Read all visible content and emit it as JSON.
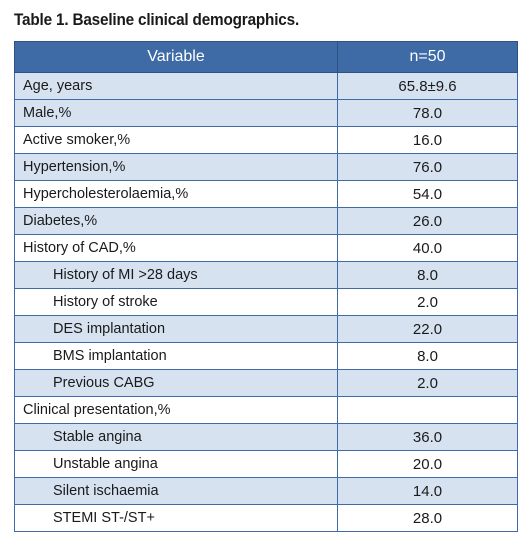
{
  "caption": "Table 1. Baseline clinical demographics.",
  "header": {
    "variable": "Variable",
    "value": "n=50"
  },
  "rows": [
    {
      "label": "Age, years",
      "value": "65.8±9.6"
    },
    {
      "label": "Male,%",
      "value": "78.0"
    },
    {
      "label": "Active smoker,%",
      "value": "16.0"
    },
    {
      "label": "Hypertension,%",
      "value": "76.0"
    },
    {
      "label": "Hypercholesterolaemia,%",
      "value": "54.0"
    },
    {
      "label": "Diabetes,%",
      "value": "26.0"
    },
    {
      "label": "History of CAD,%",
      "value": "40.0"
    },
    {
      "label": "History of MI >28 days",
      "value": "8.0"
    },
    {
      "label": "History of stroke",
      "value": "2.0"
    },
    {
      "label": "DES implantation",
      "value": "22.0"
    },
    {
      "label": "BMS implantation",
      "value": "8.0"
    },
    {
      "label": "Previous CABG",
      "value": "2.0"
    },
    {
      "label": "Clinical presentation,%",
      "value": ""
    },
    {
      "label": "Stable angina",
      "value": "36.0"
    },
    {
      "label": "Unstable angina",
      "value": "20.0"
    },
    {
      "label": "Silent ischaemia",
      "value": "14.0"
    },
    {
      "label": "STEMI ST-/ST+",
      "value": "28.0"
    }
  ]
}
